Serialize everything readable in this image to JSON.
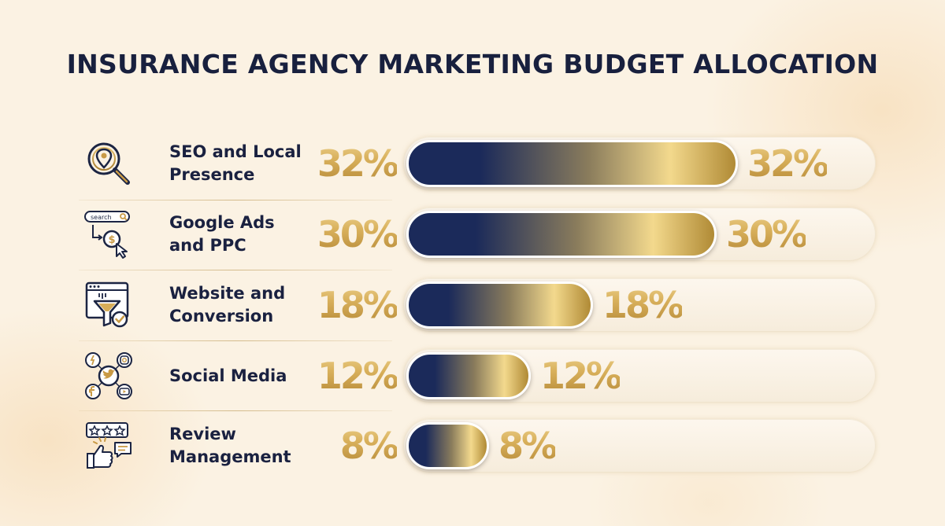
{
  "title": "INSURANCE AGENCY MARKETING BUDGET ALLOCATION",
  "icons": {
    "search_box_text": "search",
    "currency_symbol": "$"
  },
  "colors": {
    "navy": "#1b2a5a",
    "gold_light": "#f3d98d",
    "gold_dark": "#b08a35",
    "title": "#18203e"
  },
  "chart_data": {
    "type": "bar",
    "orientation": "horizontal",
    "title": "INSURANCE AGENCY MARKETING BUDGET ALLOCATION",
    "unit": "%",
    "xlim": [
      0,
      35
    ],
    "categories": [
      "SEO and Local Presence",
      "Google Ads and PPC",
      "Website and Conversion",
      "Social Media",
      "Review Management"
    ],
    "values": [
      32,
      30,
      18,
      12,
      8
    ],
    "labels": [
      "32%",
      "30%",
      "18%",
      "12%",
      "8%"
    ],
    "icons": [
      "map-pin-magnifier-icon",
      "search-click-dollar-icon",
      "web-funnel-check-icon",
      "social-media-cluster-icon",
      "stars-thumbs-up-icon"
    ]
  },
  "rows": [
    {
      "label_line1": "SEO and Local",
      "label_line2": "Presence",
      "value_text": "32%"
    },
    {
      "label_line1": "Google Ads",
      "label_line2": "and PPC",
      "value_text": "30%"
    },
    {
      "label_line1": "Website and",
      "label_line2": "Conversion",
      "value_text": "18%"
    },
    {
      "label_line1": "Social Media",
      "label_line2": "",
      "value_text": "12%"
    },
    {
      "label_line1": "Review",
      "label_line2": "Management",
      "value_text": "8%"
    }
  ]
}
